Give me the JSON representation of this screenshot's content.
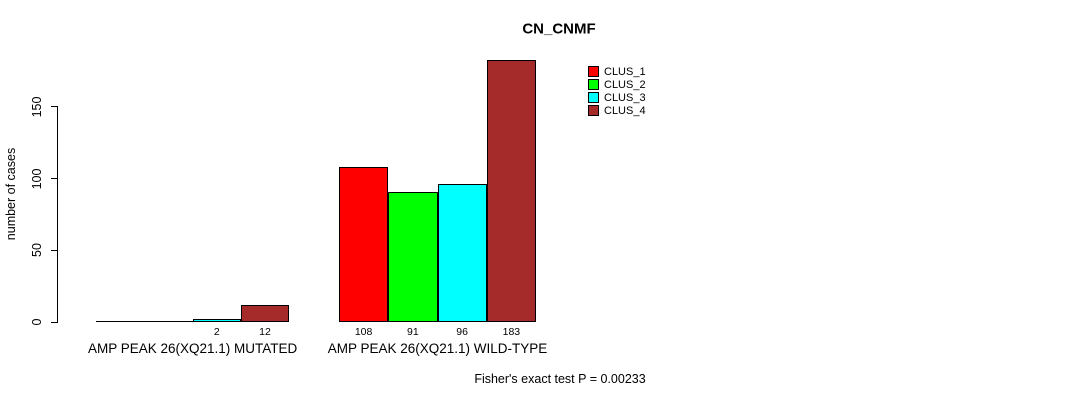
{
  "chart_data": {
    "type": "bar",
    "title": "CN_CNMF",
    "ylabel": "number of cases",
    "xlabel": "",
    "ylim": [
      0,
      190
    ],
    "yticks": [
      0,
      50,
      100,
      150
    ],
    "grid": false,
    "legend_position": "top-right",
    "categories": [
      "AMP PEAK 26(XQ21.1) MUTATED",
      "AMP PEAK 26(XQ21.1) WILD-TYPE"
    ],
    "series": [
      {
        "name": "CLUS_1",
        "color": "#FF0000",
        "values": [
          0,
          108
        ]
      },
      {
        "name": "CLUS_2",
        "color": "#00FF00",
        "values": [
          0,
          91
        ]
      },
      {
        "name": "CLUS_3",
        "color": "#00FFFF",
        "values": [
          2,
          96
        ]
      },
      {
        "name": "CLUS_4",
        "color": "#A52A2A",
        "values": [
          12,
          183
        ]
      }
    ],
    "bar_value_labels": [
      [
        "",
        "",
        "2",
        "12"
      ],
      [
        "108",
        "91",
        "96",
        "183"
      ]
    ],
    "annotation": "Fisher's exact test P = 0.00233",
    "colors": {
      "background": "#FFFFFF",
      "axis": "#000000",
      "bar_border": "#000000"
    }
  }
}
